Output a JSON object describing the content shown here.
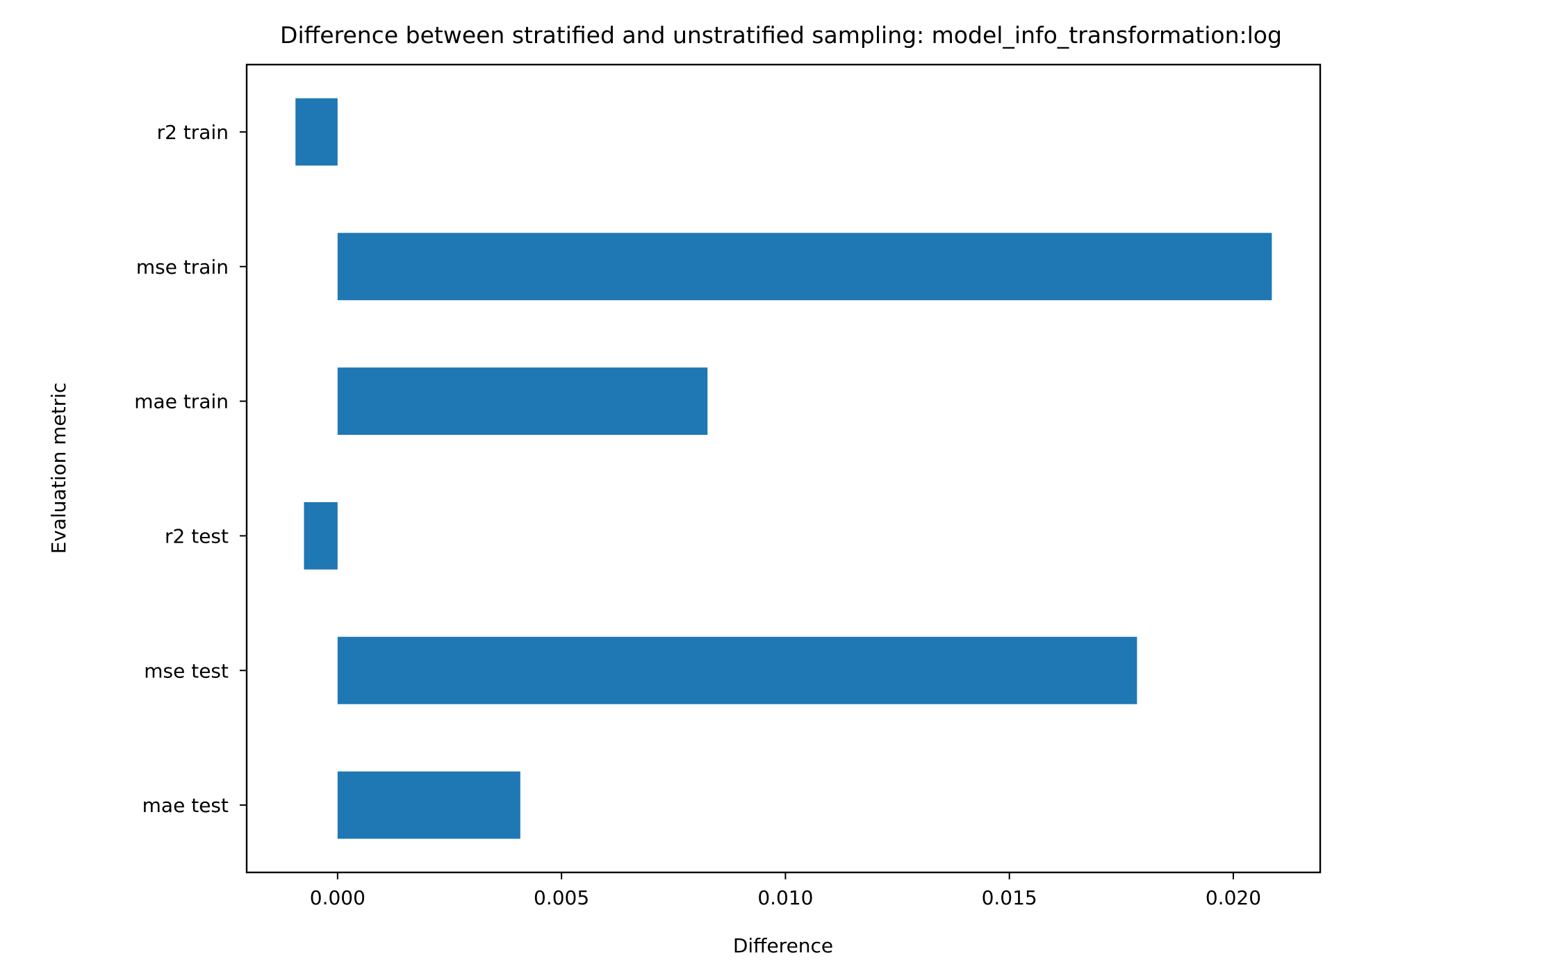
{
  "chart_data": {
    "type": "bar",
    "orientation": "horizontal",
    "title": "Difference between stratified and unstratified sampling: model_info_transformation:log",
    "xlabel": "Difference",
    "ylabel": "Evaluation metric",
    "categories": [
      "mae test",
      "mse test",
      "r2 test",
      "mae train",
      "mse train",
      "r2 train"
    ],
    "values": [
      0.00408,
      0.01785,
      -0.00075,
      0.00826,
      0.02086,
      -0.00094
    ],
    "xlim": [
      -0.00203,
      0.02194
    ],
    "xticks": [
      0.0,
      0.005,
      0.01,
      0.015,
      0.02
    ],
    "xtick_labels": [
      "0.000",
      "0.005",
      "0.010",
      "0.015",
      "0.020"
    ],
    "bar_color": "#1f77b4",
    "grid": false,
    "legend": false
  }
}
